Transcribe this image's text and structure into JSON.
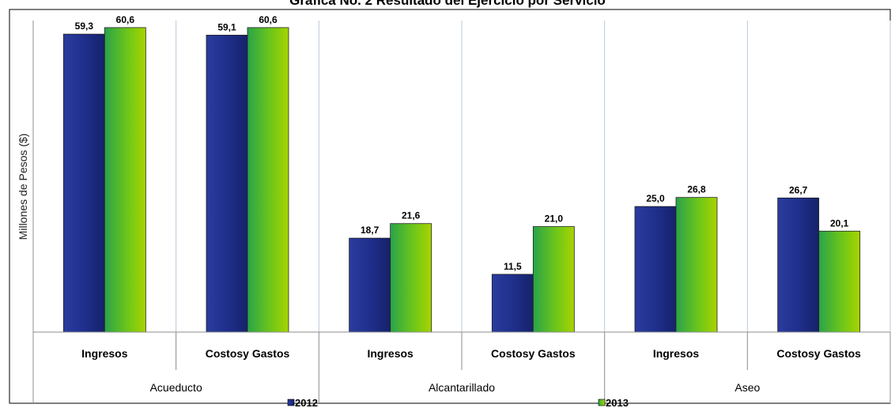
{
  "chart_data": {
    "type": "bar",
    "title": "Gráfica No. 2 Resultado del Ejercicio por Servicio",
    "ylabel": "Millones de Pesos ($)",
    "xlabel": "",
    "groups": [
      "Acueducto",
      "Alcantarillado",
      "Aseo"
    ],
    "categories": [
      "Ingresos",
      "Costos y Gastos",
      "Ingresos",
      "Costos y Gastos",
      "Ingresos",
      "Costos y Gastos"
    ],
    "category_labels": [
      "Ingresos",
      "Costosy Gastos",
      "Ingresos",
      "Costosy Gastos",
      "Ingresos",
      "Costosy Gastos"
    ],
    "series": [
      {
        "name": "2012",
        "values": [
          59.3,
          59.1,
          18.7,
          11.5,
          25.0,
          26.7
        ],
        "labels": [
          "59,3",
          "59,1",
          "18,7",
          "11,5",
          "25,0",
          "26,7"
        ]
      },
      {
        "name": "2013",
        "values": [
          60.6,
          60.6,
          21.6,
          21.0,
          26.8,
          20.1
        ],
        "labels": [
          "60,6",
          "60,6",
          "21,6",
          "21,0",
          "26,8",
          "20,1"
        ]
      }
    ],
    "colors": {
      "2012": "#1f2f8c",
      "2013": "#66c21c",
      "grid": "#b8c8de",
      "axis": "#8c8c8c"
    },
    "ylim": [
      0,
      62
    ],
    "grid": true,
    "legend": "bottom"
  }
}
